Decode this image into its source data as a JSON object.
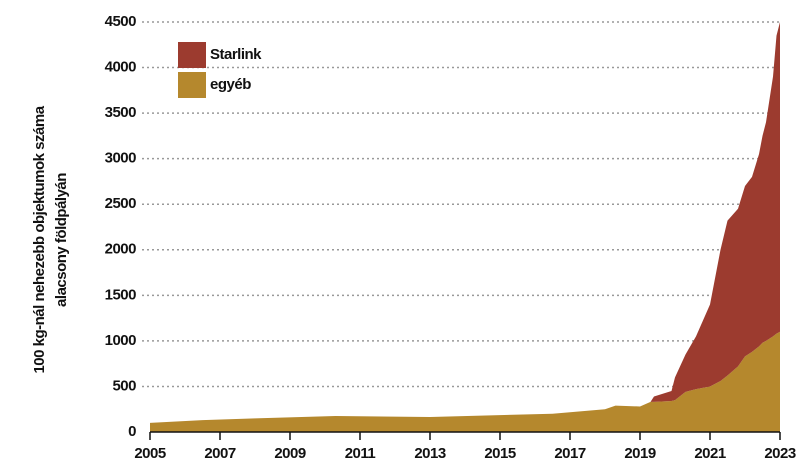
{
  "chart_data": {
    "type": "stacked_area",
    "ylabel": [
      "100 kg-nál nehezebb objektumok száma",
      "alacsony földpályán"
    ],
    "x": [
      2005,
      2006.5,
      2008,
      2010.3,
      2013,
      2016.5,
      2018,
      2018.3,
      2019,
      2019.3,
      2019.4,
      2019.9,
      2020,
      2020.3,
      2020.6,
      2021,
      2021.3,
      2021.5,
      2021.8,
      2022,
      2022.2,
      2022.4,
      2022.5,
      2022.6,
      2022.8,
      2022.9,
      2023
    ],
    "series": [
      {
        "name": "egyéb",
        "color": "#b5882d",
        "values": [
          100,
          130,
          150,
          175,
          165,
          200,
          250,
          290,
          280,
          330,
          330,
          340,
          350,
          440,
          470,
          500,
          560,
          620,
          720,
          830,
          880,
          940,
          980,
          1000,
          1050,
          1080,
          1100
        ]
      },
      {
        "name": "Starlink",
        "color": "#9c3b2f",
        "values": [
          0,
          0,
          0,
          0,
          0,
          0,
          0,
          0,
          0,
          0,
          60,
          110,
          250,
          410,
          580,
          900,
          1440,
          1700,
          1730,
          1870,
          1920,
          2110,
          2270,
          2400,
          2850,
          3270,
          3400
        ]
      }
    ],
    "xlim": [
      2005,
      2023
    ],
    "xticks": [
      2005,
      2007,
      2009,
      2011,
      2013,
      2015,
      2017,
      2019,
      2021,
      2023
    ],
    "ylim": [
      0,
      4500
    ],
    "yticks": [
      0,
      500,
      1000,
      1500,
      2000,
      2500,
      3000,
      3500,
      4000,
      4500
    ],
    "grid": true,
    "legend": "upper left"
  }
}
